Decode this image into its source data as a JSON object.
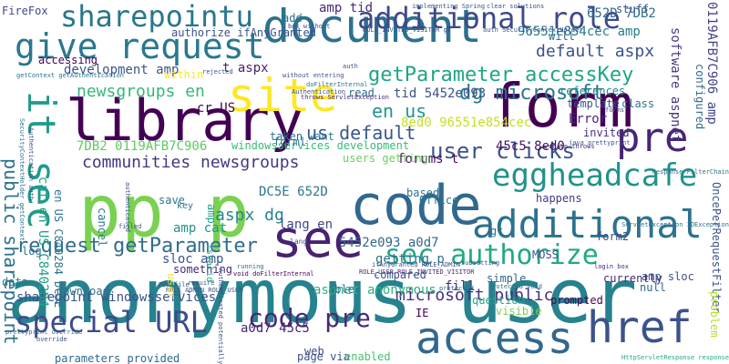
{
  "word_cloud": {
    "words": [
      {
        "text": "anonymous user",
        "color": "#26828e"
      },
      {
        "text": "document",
        "color": "#2c718e"
      },
      {
        "text": "library",
        "color": "#440154"
      },
      {
        "text": "form",
        "color": "#440154"
      },
      {
        "text": "code",
        "color": "#31688e"
      },
      {
        "text": "site",
        "color": "#fde725"
      },
      {
        "text": "pp p",
        "color": "#7ad151"
      },
      {
        "text": "see",
        "color": "#482173"
      },
      {
        "text": "access",
        "color": "#31688e"
      },
      {
        "text": "href",
        "color": "#3b528b"
      },
      {
        "text": "additional",
        "color": "#2c728e"
      },
      {
        "text": "give request",
        "color": "#2a788e"
      },
      {
        "text": "additional role",
        "color": "#3e4989"
      },
      {
        "text": "sharepointu",
        "color": "#2a768e"
      },
      {
        "text": "pre",
        "color": "#482576"
      },
      {
        "text": "eggheadcafe",
        "color": "#21918c"
      },
      {
        "text": "it sec",
        "color": "#1f9a8a"
      },
      {
        "text": "sec authorize",
        "color": "#22a884"
      },
      {
        "text": "user clicks",
        "color": "#3b528b"
      },
      {
        "text": "special URL",
        "color": "#3e4a89"
      },
      {
        "text": "request getParameter",
        "color": "#2f6c8e"
      },
      {
        "text": "code pre",
        "color": "#482878"
      },
      {
        "text": "getParameter accessKey",
        "color": "#20a486"
      },
      {
        "text": "dg microsoft",
        "color": "#2a788e"
      },
      {
        "text": "communities newsgroups",
        "color": "#453781"
      },
      {
        "text": "us default",
        "color": "#39568c"
      },
      {
        "text": "public sharepoint",
        "color": "#2c728e"
      },
      {
        "text": "newsgroups en",
        "color": "#35b779"
      },
      {
        "text": "aspx dg",
        "color": "#25858e"
      },
      {
        "text": "en us",
        "color": "#1f968b"
      },
      {
        "text": "default aspx",
        "color": "#3b528b"
      },
      {
        "text": "development amp",
        "color": "#3b528b"
      },
      {
        "text": "microsoft public",
        "color": "#472f7d"
      },
      {
        "text": "sharepoint windowsservices",
        "color": "#3b528b"
      },
      {
        "text": "aspnet anonymous",
        "color": "#2ab07f"
      },
      {
        "text": "software aspnet",
        "color": "#443983"
      },
      {
        "text": "0119AFB7C906 amp",
        "color": "#404688"
      },
      {
        "text": "96551e854cec amp",
        "color": "#287d8e"
      },
      {
        "text": "652D 7DB2",
        "color": "#2f6c8e"
      },
      {
        "text": "DC5E 652D",
        "color": "#2a788e"
      },
      {
        "text": "7DB2 0119AFB7C906",
        "color": "#5ec962"
      },
      {
        "text": "8ed0 96551e854cec",
        "color": "#c8e020"
      },
      {
        "text": "5452e093 a0d7",
        "color": "#31688e"
      },
      {
        "text": "tid 5452e093",
        "color": "#3b528b"
      },
      {
        "text": "45c5 8ed0",
        "color": "#471164"
      },
      {
        "text": "a0d7 45c5",
        "color": "#482475"
      },
      {
        "text": "cat en US C840284",
        "color": "#1fa088"
      },
      {
        "text": "en US C840284 DC5E",
        "color": "#2c728e"
      },
      {
        "text": "lang en",
        "color": "#3e4989"
      },
      {
        "text": "amp cat",
        "color": "#21918c"
      },
      {
        "text": "sloc amp",
        "color": "#3b528b"
      },
      {
        "text": "amp tid",
        "color": "#482878"
      },
      {
        "text": "cr US",
        "color": "#440154"
      },
      {
        "text": "forums t",
        "color": "#470e61"
      },
      {
        "text": "getting p",
        "color": "#2c728e"
      },
      {
        "text": "users getting",
        "color": "#6ccd5a"
      },
      {
        "text": "windowsservices development",
        "color": "#3aba76"
      },
      {
        "text": "authorize ifAnyGranted",
        "color": "#3b528b"
      },
      {
        "text": "t aspx",
        "color": "#481f70"
      },
      {
        "text": "Error",
        "color": "#482878"
      },
      {
        "text": "invited",
        "color": "#46307e"
      },
      {
        "text": "MOSS",
        "color": "#3b528b"
      },
      {
        "text": "form2",
        "color": "#3e4989"
      },
      {
        "text": "amp sloc",
        "color": "#3b528b"
      },
      {
        "text": "prompted",
        "color": "#440154"
      },
      {
        "text": "IE",
        "color": "#440154"
      },
      {
        "text": "question",
        "color": "#22a884"
      },
      {
        "text": "visible",
        "color": "#7ad151"
      },
      {
        "text": "simple",
        "color": "#31688e"
      },
      {
        "text": "fill",
        "color": "#46307e"
      },
      {
        "text": "save",
        "color": "#2a788e"
      },
      {
        "text": "key",
        "color": "#2c728e"
      },
      {
        "text": "log",
        "color": "#2c718e"
      },
      {
        "text": "data",
        "color": "#2a788e"
      },
      {
        "text": "download",
        "color": "#2f6c8e"
      },
      {
        "text": "parameters provided",
        "color": "#31688e"
      },
      {
        "text": "page via",
        "color": "#3b528b"
      },
      {
        "text": "enabled",
        "color": "#46c06f"
      },
      {
        "text": "web",
        "color": "#3e4989"
      },
      {
        "text": "FireFox",
        "color": "#3f4788"
      },
      {
        "text": "accessing",
        "color": "#440154"
      },
      {
        "text": "references",
        "color": "#25838e"
      },
      {
        "text": "template",
        "color": "#3b528b"
      },
      {
        "text": "class",
        "color": "#2a788e"
      },
      {
        "text": "configured",
        "color": "#31688e"
      },
      {
        "text": "OncePerRequestFilter",
        "color": "#3b528b"
      },
      {
        "text": "problem",
        "color": "#b5de2b"
      },
      {
        "text": "null",
        "color": "#31688e"
      },
      {
        "text": "happens",
        "color": "#453781"
      },
      {
        "text": "something",
        "color": "#482878"
      },
      {
        "text": "gt",
        "color": "#2c728e"
      },
      {
        "text": "based",
        "color": "#2c728e"
      },
      {
        "text": "Office",
        "color": "#2a788e"
      },
      {
        "text": "compared",
        "color": "#3b528b"
      },
      {
        "text": "able",
        "color": "#2c728e"
      },
      {
        "text": "isValid",
        "color": "#22a884"
      },
      {
        "text": "cancel",
        "color": "#2a788e"
      },
      {
        "text": "currently",
        "color": "#482878"
      },
      {
        "text": "taken",
        "color": "#2c728e"
      },
      {
        "text": "want",
        "color": "#2a788e"
      },
      {
        "text": "within",
        "color": "#fde725"
      },
      {
        "text": "read",
        "color": "#31688e"
      },
      {
        "text": "add",
        "color": "#2c728e"
      },
      {
        "text": "will",
        "color": "#31688e"
      },
      {
        "text": "stuff",
        "color": "#3b528b"
      },
      {
        "text": "ROLE_ADMIN ROLE_USER",
        "color": "#3b528b"
      },
      {
        "text": "ROLE_USER ROLE_INVITED_VISITOR",
        "color": "#482878"
      },
      {
        "text": "ROLE_INVITED_VISITOR gt",
        "color": "#3b528b"
      },
      {
        "text": "ifAnyGranted ROLE_ADMIN",
        "color": "#3b528b"
      },
      {
        "text": "java prettyprint",
        "color": "#3b528b"
      },
      {
        "text": "prettyprint override",
        "color": "#31688e"
      },
      {
        "text": "doFilterInternal",
        "color": "#2c728e"
      },
      {
        "text": "throws ServletException",
        "color": "#482878"
      },
      {
        "text": "user",
        "color": "#fde725"
      },
      {
        "text": "amp",
        "color": "#1fa088"
      },
      {
        "text": "lang",
        "color": "#3b528b"
      },
      {
        "text": "forml",
        "color": "#2a788e"
      },
      {
        "text": "implementing Spring",
        "color": "#3b528b"
      },
      {
        "text": "clear solutions",
        "color": "#3b528b"
      },
      {
        "text": "getContext getAuthentication",
        "color": "#2c728e"
      },
      {
        "text": "SecurityContextHolder getContext",
        "color": "#2c728e"
      },
      {
        "text": "Authentication auth",
        "color": "#3b528b"
      },
      {
        "text": "auth SecurityContextHolder",
        "color": "#3b528b"
      },
      {
        "text": "ServletException IOException",
        "color": "#2c728e"
      },
      {
        "text": "Response FilterChain",
        "color": "#2c728e"
      },
      {
        "text": "HttpServletResponse response",
        "color": "#22a884"
      },
      {
        "text": "chain throws",
        "color": "#482878"
      },
      {
        "text": "subsetting",
        "color": "#3b528b"
      },
      {
        "text": "protected void",
        "color": "#2c728e"
      },
      {
        "text": "void doFilterInternal",
        "color": "#440154"
      },
      {
        "text": "without entering",
        "color": "#3b528b"
      },
      {
        "text": "box without",
        "color": "#3b528b"
      },
      {
        "text": "running",
        "color": "#2c728e"
      },
      {
        "text": "PDF file",
        "color": "#3b528b"
      },
      {
        "text": "require",
        "color": "#3b528b"
      },
      {
        "text": "login box",
        "color": "#482878"
      },
      {
        "text": "filled",
        "color": "#3b528b"
      },
      {
        "text": "Authenticated potentially",
        "color": "#3b528b"
      },
      {
        "text": "authenticated",
        "color": "#3b528b"
      },
      {
        "text": "rejected",
        "color": "#3b528b"
      },
      {
        "text": "Authentication",
        "color": "#3b528b"
      },
      {
        "text": "auth",
        "color": "#3b528b"
      },
      {
        "text": "protected",
        "color": "#2c728e"
      },
      {
        "text": "override",
        "color": "#3b528b"
      },
      {
        "text": "forms",
        "color": "#3b528b"
      }
    ]
  }
}
